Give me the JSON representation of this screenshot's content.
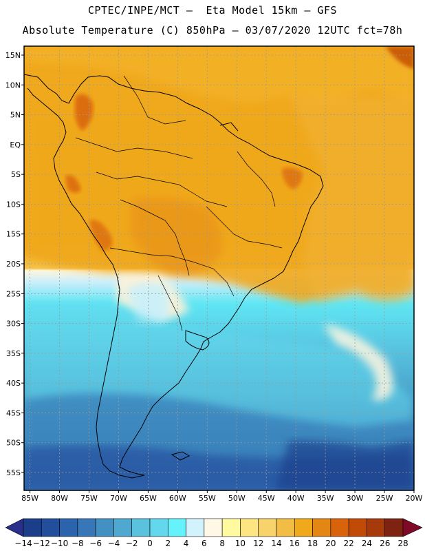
{
  "header": {
    "line1": "CPTEC/INPE/MCT –  Eta Model 15km – GFS",
    "line2": "Absolute Temperature (C) 850hPa – 03/07/2020 12UTC fct=78h"
  },
  "map": {
    "region": "South America",
    "variable": "Absolute Temperature (C) 850hPa",
    "lat_labels": [
      "15N",
      "10N",
      "5N",
      "EQ",
      "5S",
      "10S",
      "15S",
      "20S",
      "25S",
      "30S",
      "35S",
      "40S",
      "45S",
      "50S",
      "55S"
    ],
    "lon_labels": [
      "85W",
      "80W",
      "75W",
      "70W",
      "65W",
      "60W",
      "55W",
      "50W",
      "45W",
      "40W",
      "35W",
      "30W",
      "25W",
      "20W"
    ],
    "lat_range": [
      -58,
      16.5
    ],
    "lon_range": [
      -86,
      -20
    ]
  },
  "colorbar": {
    "labels": [
      "-14",
      "-12",
      "-10",
      "-8",
      "-6",
      "-4",
      "-2",
      "0",
      "2",
      "4",
      "6",
      "8",
      "10",
      "12",
      "14",
      "16",
      "18",
      "20",
      "22",
      "24",
      "26",
      "28"
    ],
    "colors": [
      "#1b3e8a",
      "#224f9c",
      "#2b63ac",
      "#3777b8",
      "#4390c3",
      "#4ea8cf",
      "#5bc2dd",
      "#63d8ec",
      "#66f2fb",
      "#d2f3fb",
      "#fff8e6",
      "#fffaa0",
      "#fde582",
      "#f8d26a",
      "#f1bd45",
      "#f0a91a",
      "#e48614",
      "#d9630a",
      "#c14a06",
      "#a73a0a",
      "#7e2312"
    ],
    "under_color": "#2a2f8a",
    "over_color": "#7e0a28"
  }
}
